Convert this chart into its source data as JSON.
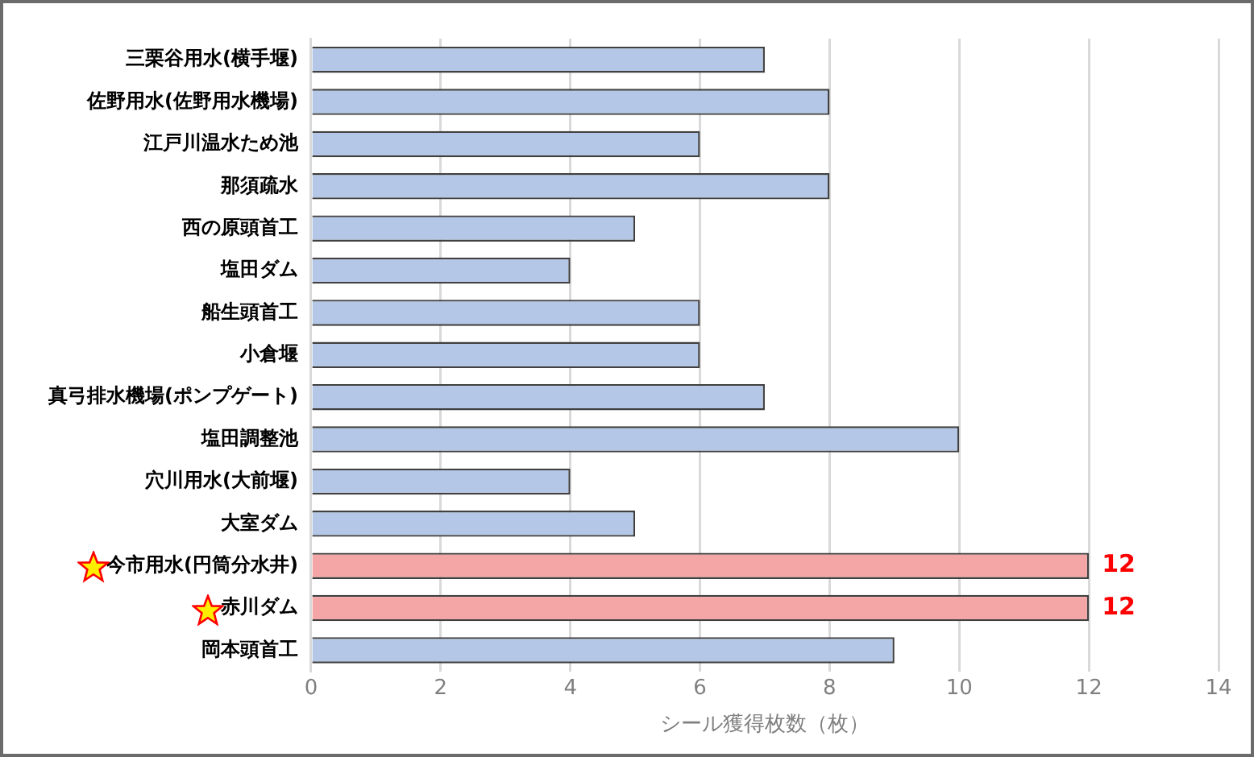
{
  "chart_data": {
    "type": "bar",
    "orientation": "horizontal",
    "xlabel": "シール獲得枚数（枚）",
    "categories": [
      "三栗谷用水(横手堰)",
      "佐野用水(佐野用水機場)",
      "江戸川温水ため池",
      "那須疏水",
      "西の原頭首工",
      "塩田ダム",
      "船生頭首工",
      "小倉堰",
      "真弓排水機場(ポンプゲート)",
      "塩田調整池",
      "穴川用水(大前堰)",
      "大室ダム",
      "今市用水(円筒分水井)",
      "赤川ダム",
      "岡本頭首工"
    ],
    "values": [
      7,
      8,
      6,
      8,
      5,
      4,
      6,
      6,
      7,
      10,
      4,
      5,
      12,
      12,
      9
    ],
    "colors": [
      "#b4c7e7",
      "#b4c7e7",
      "#b4c7e7",
      "#b4c7e7",
      "#b4c7e7",
      "#b4c7e7",
      "#b4c7e7",
      "#b4c7e7",
      "#b4c7e7",
      "#b4c7e7",
      "#b4c7e7",
      "#b4c7e7",
      "#f4a6a6",
      "#f4a6a6",
      "#b4c7e7"
    ],
    "value_labels": [
      null,
      null,
      null,
      null,
      null,
      null,
      null,
      null,
      null,
      null,
      null,
      null,
      "12",
      "12",
      null
    ],
    "xlim": [
      0,
      14
    ],
    "xticks": [
      0,
      2,
      4,
      6,
      8,
      10,
      12,
      14
    ],
    "grid": "x",
    "legend": false
  }
}
